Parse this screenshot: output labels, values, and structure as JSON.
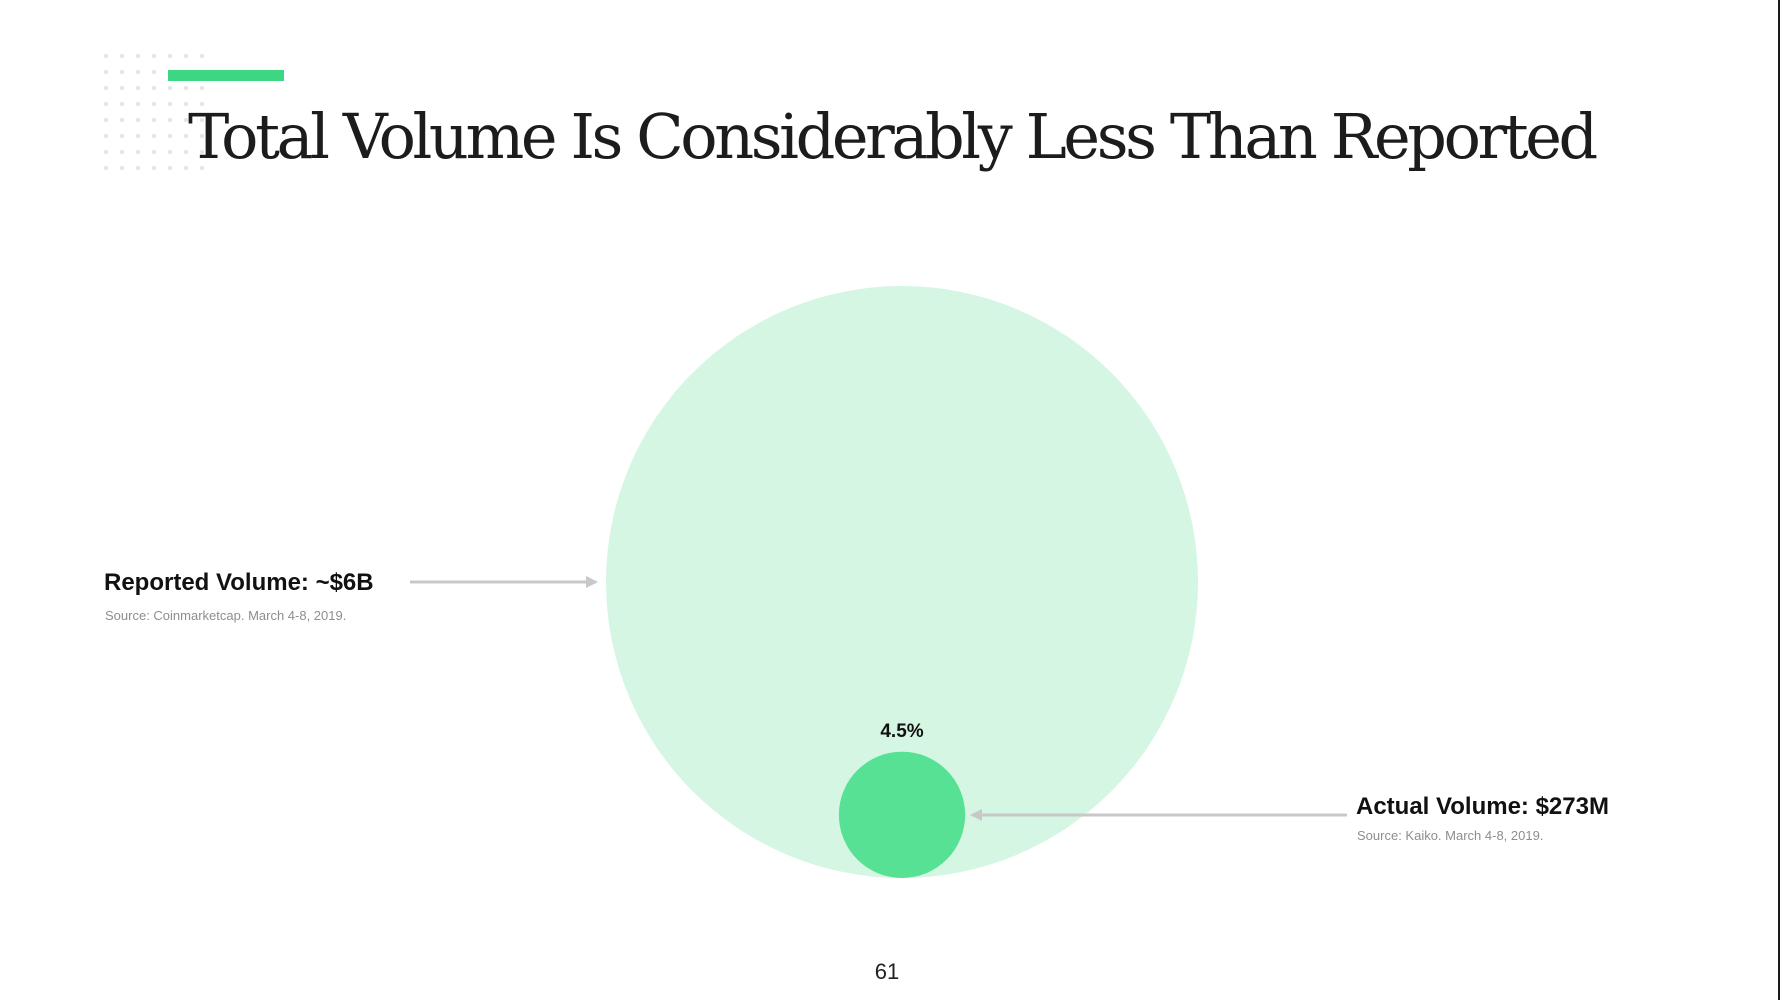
{
  "slide": {
    "title": "Total Volume Is Considerably Less Than Reported",
    "page_number": "61"
  },
  "colors": {
    "accent": "#3dd683",
    "reported_bubble": "#d5f6e3",
    "actual_bubble": "#56e194",
    "arrow": "#c8c8c8"
  },
  "chart_data": {
    "type": "bubble",
    "title": "Total Volume Is Considerably Less Than Reported",
    "series": [
      {
        "name": "Reported Volume",
        "label": "Reported Volume: ~$6B",
        "value": 6000000000,
        "source": "Source: Coinmarketcap. March 4-8, 2019."
      },
      {
        "name": "Actual Volume",
        "label": "Actual Volume: $273M",
        "value": 273000000,
        "source": "Source: Kaiko. March 4-8, 2019."
      }
    ],
    "annotation": "4.5%"
  }
}
